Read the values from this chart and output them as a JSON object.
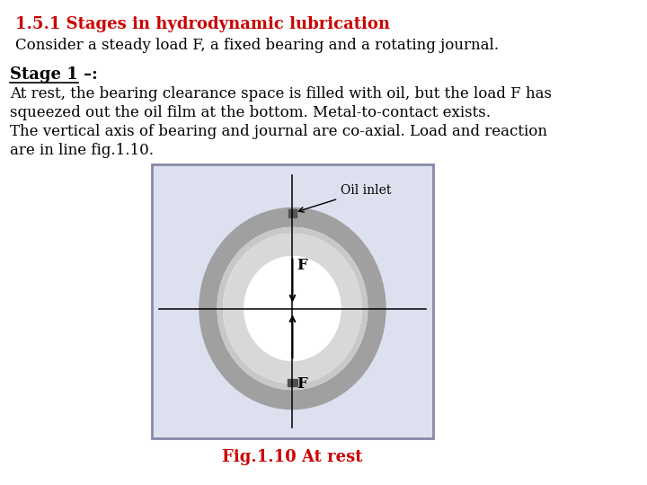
{
  "title": "1.5.1 Stages in hydrodynamic lubrication",
  "title_color": "#cc0000",
  "subtitle": "Consider a steady load F, a fixed bearing and a rotating journal.",
  "stage_label": "Stage 1 –:",
  "body_text_line1": "At rest, the bearing clearance space is filled with oil, but the load F has",
  "body_text_line2": "squeezed out the oil film at the bottom. Metal-to-contact exists.",
  "body_text_line3": "The vertical axis of bearing and journal are co-axial. Load and reaction",
  "body_text_line4": "are in line fig.1.10.",
  "fig_caption": "Fig.1.10 At rest",
  "fig_caption_color": "#cc0000",
  "bg_color": "#ffffff",
  "text_color": "#000000",
  "outer_ring_color": "#a0a0a0",
  "oil_film_color": "#c8c8c8",
  "inner_ring_color": "#d8d8d8",
  "contact_color": "#505050",
  "fig_box_color": "#dde0ee",
  "fig_box_border": "#8888aa"
}
